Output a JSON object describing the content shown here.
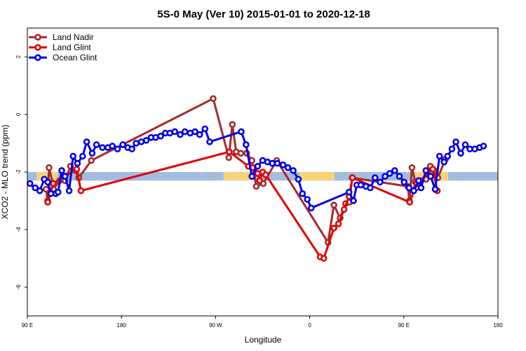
{
  "chart_data": {
    "type": "line",
    "title": "5S-0 May (Ver 10)   2015-01-01 to 2020-12-18",
    "xlabel": "Longitude",
    "ylabel": "XCO2 - MLO trend (ppm)",
    "xlim": [
      90,
      450
    ],
    "ylim": [
      -7,
      3
    ],
    "xticks": [
      {
        "value": 90,
        "label": "90 E"
      },
      {
        "value": 162,
        "label": "180"
      },
      {
        "value": 234,
        "label": "90 W"
      },
      {
        "value": 306,
        "label": "0"
      },
      {
        "value": 378,
        "label": "90 E"
      },
      {
        "value": 450,
        "label": "180"
      }
    ],
    "yticks": [
      {
        "value": -6,
        "label": "-6"
      },
      {
        "value": -4,
        "label": "-4"
      },
      {
        "value": -2,
        "label": "-2"
      },
      {
        "value": 0,
        "label": "0"
      },
      {
        "value": 2,
        "label": "2"
      }
    ],
    "legend_position": "top-left",
    "band": {
      "y": -2.15,
      "height": 0.3,
      "ocean_color": "#a3bde0",
      "land_color": "#f5d47a",
      "land_ranges": [
        [
          97,
          113
        ],
        [
          240,
          262
        ],
        [
          298,
          325
        ],
        [
          386,
          412
        ]
      ]
    },
    "series": [
      {
        "name": "Land Nadir",
        "color": "#a52a2a",
        "points": [
          [
            104.4,
            -2.6
          ],
          [
            105.5,
            -3.0
          ],
          [
            106.6,
            -1.85
          ],
          [
            109.5,
            -2.4
          ],
          [
            110.0,
            -2.6
          ],
          [
            114.7,
            -2.3
          ],
          [
            118.8,
            -2.3
          ],
          [
            123.0,
            -1.8
          ],
          [
            126.6,
            -1.95
          ],
          [
            129.3,
            -2.2
          ],
          [
            139.0,
            -1.6
          ],
          [
            232.2,
            0.55
          ],
          [
            244.1,
            -1.5
          ],
          [
            246.8,
            -0.35
          ],
          [
            249.8,
            -1.3
          ],
          [
            253.3,
            -1.35
          ],
          [
            257.8,
            -1.35
          ],
          [
            261.8,
            -1.6
          ],
          [
            265.1,
            -2.5
          ],
          [
            270.5,
            -2.4
          ],
          [
            280.8,
            -1.6
          ],
          [
            320.0,
            -4.45
          ],
          [
            324.5,
            -3.15
          ],
          [
            329.3,
            -3.6
          ],
          [
            333.4,
            -3.1
          ],
          [
            336.5,
            -3.05
          ],
          [
            338.5,
            -2.2
          ],
          [
            381.0,
            -2.5
          ],
          [
            382.3,
            -3.0
          ],
          [
            384.2,
            -1.85
          ],
          [
            386.8,
            -2.35
          ],
          [
            387.5,
            -2.55
          ],
          [
            391.2,
            -2.3
          ],
          [
            395.0,
            -2.25
          ],
          [
            398.3,
            -1.8
          ],
          [
            401.4,
            -1.95
          ],
          [
            404.0,
            -2.2
          ],
          [
            409.9,
            -1.55
          ]
        ]
      },
      {
        "name": "Land Glint",
        "color": "#e00000",
        "points": [
          [
            105.6,
            -3.05
          ],
          [
            109.8,
            -2.4
          ],
          [
            127.8,
            -1.9
          ],
          [
            131.0,
            -2.65
          ],
          [
            244.5,
            -1.3
          ],
          [
            259.1,
            -1.8
          ],
          [
            262.2,
            -1.85
          ],
          [
            266.2,
            -2.05
          ],
          [
            267.7,
            -2.3
          ],
          [
            270.0,
            -2.0
          ],
          [
            272.4,
            -2.1
          ],
          [
            314.0,
            -4.95
          ],
          [
            316.8,
            -5.0
          ],
          [
            324.5,
            -3.95
          ],
          [
            328.0,
            -3.8
          ],
          [
            332.3,
            -3.3
          ],
          [
            336.1,
            -2.85
          ],
          [
            338.7,
            -2.2
          ],
          [
            382.5,
            -3.05
          ],
          [
            388.0,
            -2.4
          ],
          [
            400.2,
            -1.9
          ],
          [
            403.6,
            -2.65
          ]
        ]
      },
      {
        "name": "Ocean Glint",
        "color": "#0000e6",
        "points": [
          [
            92.0,
            -2.4
          ],
          [
            96.0,
            -2.55
          ],
          [
            99.5,
            -2.65
          ],
          [
            103.0,
            -2.25
          ],
          [
            105.6,
            -2.35
          ],
          [
            108.0,
            -2.75
          ],
          [
            111.8,
            -2.75
          ],
          [
            113.5,
            -2.7
          ],
          [
            116.3,
            -1.95
          ],
          [
            118.8,
            -2.15
          ],
          [
            122.0,
            -2.65
          ],
          [
            125.0,
            -1.45
          ],
          [
            128.3,
            -1.7
          ],
          [
            132.3,
            -1.45
          ],
          [
            135.4,
            -0.95
          ],
          [
            139.6,
            -1.35
          ],
          [
            142.9,
            -1.05
          ],
          [
            147.4,
            -1.15
          ],
          [
            151.6,
            -1.15
          ],
          [
            155.0,
            -1.1
          ],
          [
            159.0,
            -1.2
          ],
          [
            163.0,
            -1.05
          ],
          [
            166.8,
            -1.15
          ],
          [
            170.0,
            -1.2
          ],
          [
            173.2,
            -1.0
          ],
          [
            177.2,
            -0.95
          ],
          [
            181.0,
            -0.9
          ],
          [
            184.7,
            -0.8
          ],
          [
            188.2,
            -0.8
          ],
          [
            192.0,
            -0.75
          ],
          [
            195.6,
            -0.65
          ],
          [
            199.0,
            -0.65
          ],
          [
            202.8,
            -0.6
          ],
          [
            206.9,
            -0.7
          ],
          [
            210.5,
            -0.6
          ],
          [
            214.6,
            -0.65
          ],
          [
            218.2,
            -0.6
          ],
          [
            221.8,
            -0.7
          ],
          [
            225.9,
            -0.5
          ],
          [
            229.5,
            -0.95
          ],
          [
            253.6,
            -0.6
          ],
          [
            257.3,
            -1.05
          ],
          [
            261.8,
            -2.15
          ],
          [
            266.2,
            -1.8
          ],
          [
            270.0,
            -1.6
          ],
          [
            273.7,
            -1.65
          ],
          [
            277.4,
            -1.7
          ],
          [
            281.2,
            -1.7
          ],
          [
            285.6,
            -1.75
          ],
          [
            289.3,
            -1.85
          ],
          [
            293.4,
            -1.95
          ],
          [
            297.3,
            -2.25
          ],
          [
            300.5,
            -2.75
          ],
          [
            304.2,
            -2.95
          ],
          [
            307.2,
            -3.25
          ],
          [
            336.1,
            -2.7
          ],
          [
            339.5,
            -3.0
          ],
          [
            342.0,
            -2.45
          ],
          [
            345.1,
            -2.45
          ],
          [
            349.0,
            -2.5
          ],
          [
            352.3,
            -2.55
          ],
          [
            356.0,
            -2.2
          ],
          [
            359.8,
            -2.35
          ],
          [
            363.6,
            -2.15
          ],
          [
            367.2,
            -2.05
          ],
          [
            371.0,
            -1.95
          ],
          [
            374.6,
            -2.15
          ],
          [
            378.2,
            -2.35
          ],
          [
            382.0,
            -2.55
          ],
          [
            385.6,
            -2.65
          ],
          [
            389.3,
            -2.3
          ],
          [
            391.2,
            -2.55
          ],
          [
            394.9,
            -1.95
          ],
          [
            398.5,
            -2.15
          ],
          [
            402.0,
            -2.6
          ],
          [
            405.3,
            -1.45
          ],
          [
            408.8,
            -1.65
          ],
          [
            411.5,
            -1.45
          ],
          [
            414.8,
            -1.2
          ],
          [
            417.8,
            -0.95
          ],
          [
            421.5,
            -1.35
          ],
          [
            425.0,
            -1.05
          ],
          [
            428.5,
            -1.2
          ],
          [
            432.3,
            -1.2
          ],
          [
            436.0,
            -1.15
          ],
          [
            439.0,
            -1.1
          ]
        ]
      }
    ]
  }
}
